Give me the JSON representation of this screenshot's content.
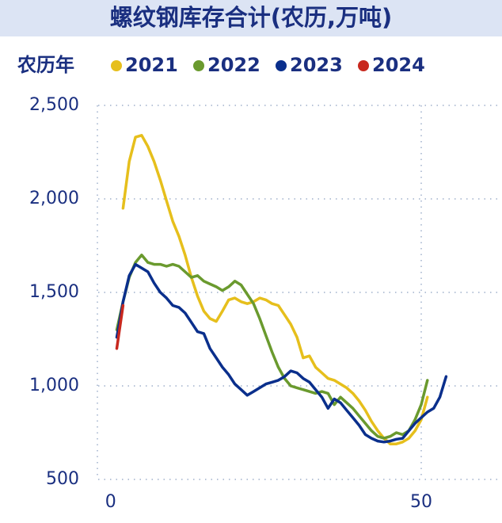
{
  "chart_data": {
    "type": "line",
    "title": "螺纹钢库存合计(农历,万吨)",
    "legend_title": "农历年",
    "x": [
      1,
      2,
      3,
      4,
      5,
      6,
      7,
      8,
      9,
      10,
      11,
      12,
      13,
      14,
      15,
      16,
      17,
      18,
      19,
      20,
      21,
      22,
      23,
      24,
      25,
      26,
      27,
      28,
      29,
      30,
      31,
      32,
      33,
      34,
      35,
      36,
      37,
      38,
      39,
      40,
      41,
      42,
      43,
      44,
      45,
      46,
      47,
      48,
      49,
      50,
      51,
      52,
      53,
      54
    ],
    "xlim": [
      -2,
      63
    ],
    "xticks": [
      0,
      50
    ],
    "ylim": [
      500,
      2500
    ],
    "yticks": [
      {
        "value": 500,
        "label": "500"
      },
      {
        "value": 1000,
        "label": "1,000"
      },
      {
        "value": 1500,
        "label": "1,500"
      },
      {
        "value": 2000,
        "label": "2,000"
      },
      {
        "value": 2500,
        "label": "2,500"
      }
    ],
    "grid": true,
    "series": [
      {
        "name": "2021",
        "color": "#e6bf1c",
        "values": [
          null,
          1950,
          2200,
          2330,
          2340,
          2280,
          2200,
          2100,
          1990,
          1880,
          1800,
          1700,
          1580,
          1480,
          1400,
          1360,
          1345,
          1400,
          1460,
          1470,
          1450,
          1440,
          1450,
          1470,
          1460,
          1440,
          1430,
          1380,
          1330,
          1260,
          1150,
          1160,
          1100,
          1070,
          1040,
          1030,
          1010,
          990,
          960,
          920,
          870,
          810,
          760,
          720,
          690,
          690,
          700,
          720,
          760,
          820,
          940,
          null,
          null,
          null
        ]
      },
      {
        "name": "2022",
        "color": "#6a9a2e",
        "values": [
          1300,
          1450,
          1580,
          1660,
          1700,
          1660,
          1650,
          1650,
          1640,
          1650,
          1640,
          1610,
          1580,
          1590,
          1560,
          1545,
          1530,
          1510,
          1530,
          1560,
          1540,
          1490,
          1440,
          1360,
          1270,
          1180,
          1100,
          1040,
          1000,
          990,
          980,
          970,
          960,
          970,
          960,
          900,
          940,
          910,
          880,
          840,
          800,
          760,
          730,
          720,
          730,
          750,
          740,
          760,
          820,
          900,
          1030,
          null,
          null,
          null
        ]
      },
      {
        "name": "2023",
        "color": "#0a2f8c",
        "values": [
          1260,
          1450,
          1590,
          1650,
          1630,
          1610,
          1550,
          1500,
          1470,
          1430,
          1420,
          1390,
          1340,
          1290,
          1280,
          1200,
          1150,
          1100,
          1060,
          1010,
          980,
          950,
          970,
          990,
          1010,
          1020,
          1030,
          1050,
          1080,
          1070,
          1040,
          1020,
          980,
          940,
          880,
          930,
          910,
          870,
          830,
          790,
          740,
          720,
          705,
          700,
          705,
          715,
          720,
          760,
          800,
          830,
          860,
          880,
          940,
          1050
        ]
      },
      {
        "name": "2024",
        "color": "#c8281e",
        "values": [
          1200,
          1430,
          null,
          null,
          null,
          null,
          null,
          null,
          null,
          null,
          null,
          null,
          null,
          null,
          null,
          null,
          null,
          null,
          null,
          null,
          null,
          null,
          null,
          null,
          null,
          null,
          null,
          null,
          null,
          null,
          null,
          null,
          null,
          null,
          null,
          null,
          null,
          null,
          null,
          null,
          null,
          null,
          null,
          null,
          null,
          null,
          null,
          null,
          null,
          null,
          null,
          null,
          null,
          null
        ]
      }
    ]
  }
}
